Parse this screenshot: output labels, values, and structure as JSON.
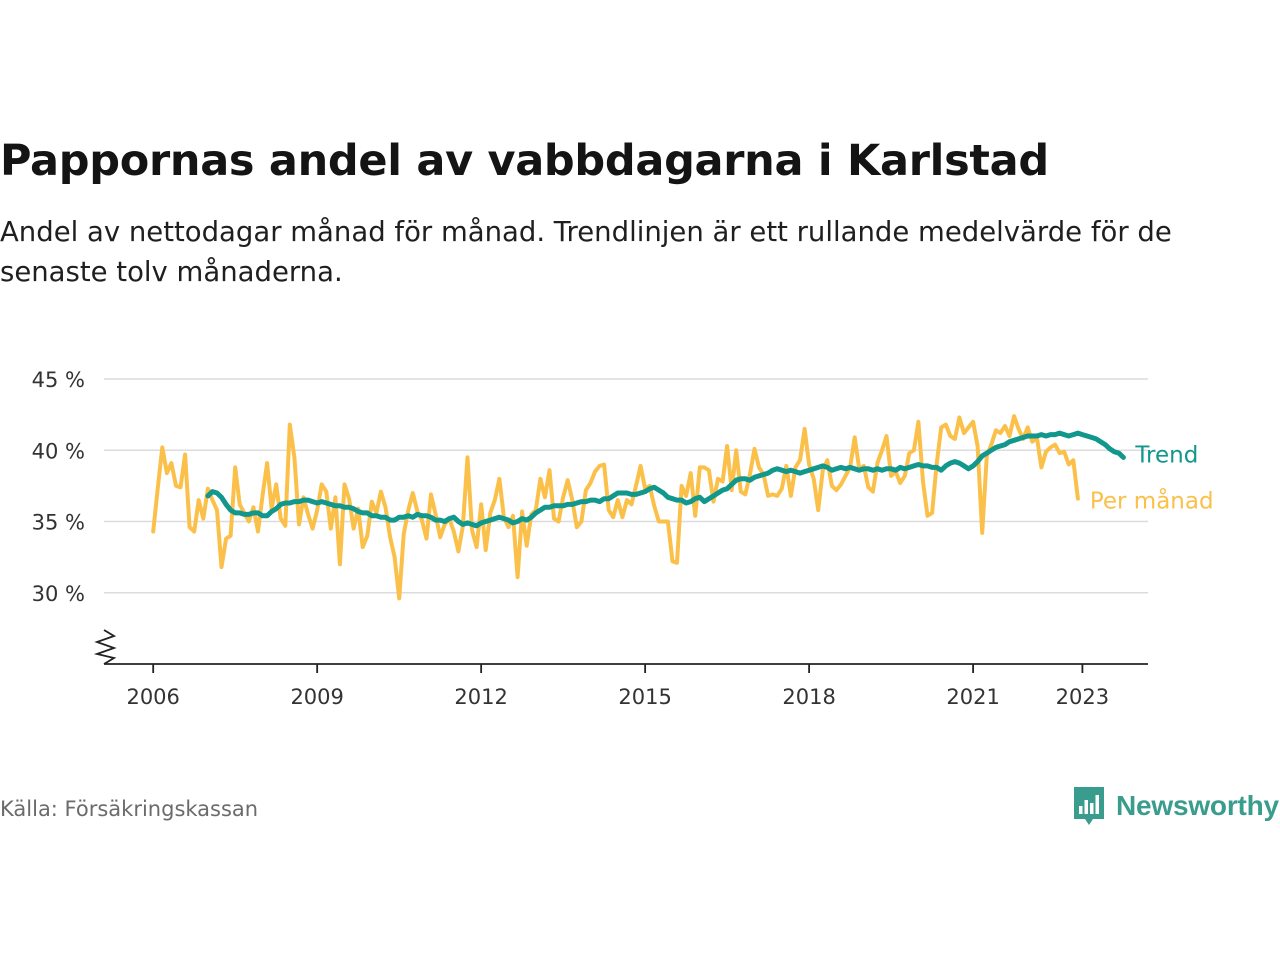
{
  "title": "Pappornas andel av vabbdagarna i Karlstad",
  "subtitle": "Andel av nettodagar månad för månad. Trendlinjen är ett rullande medelvärde för de senaste tolv månaderna.",
  "source": "Källa: Försäkringskassan",
  "brand": {
    "name": "Newsworthy",
    "color": "#3a9c8c",
    "icon": "newsworthy-logo-icon"
  },
  "chart_data": {
    "type": "line",
    "title": "Pappornas andel av vabbdagarna i Karlstad",
    "xlabel": "",
    "ylabel": "",
    "x_start": "2006-01",
    "x_ticks": [
      {
        "label": "2006",
        "value": 2006
      },
      {
        "label": "2009",
        "value": 2009
      },
      {
        "label": "2012",
        "value": 2012
      },
      {
        "label": "2015",
        "value": 2015
      },
      {
        "label": "2018",
        "value": 2018
      },
      {
        "label": "2021",
        "value": 2021
      },
      {
        "label": "2023",
        "value": 2023
      }
    ],
    "y_ticks": [
      {
        "label": "30 %",
        "value": 30
      },
      {
        "label": "35 %",
        "value": 35
      },
      {
        "label": "40 %",
        "value": 40
      },
      {
        "label": "45 %",
        "value": 45
      }
    ],
    "ylim": [
      25,
      45
    ],
    "xlim": [
      2005.1,
      2024.2
    ],
    "grid": true,
    "y_axis_break": true,
    "legend": "inline-right",
    "series": [
      {
        "name": "Per månad",
        "color": "#fbc04a",
        "values": [
          34.3,
          37.3,
          40.2,
          38.4,
          39.1,
          37.5,
          37.4,
          39.7,
          34.6,
          34.3,
          36.5,
          35.2,
          37.3,
          36.5,
          35.8,
          31.8,
          33.8,
          34.0,
          38.8,
          36.2,
          35.6,
          35.0,
          36.0,
          34.3,
          36.8,
          39.1,
          35.9,
          37.6,
          35.2,
          34.7,
          41.8,
          39.5,
          34.8,
          36.7,
          35.5,
          34.5,
          35.8,
          37.6,
          37.1,
          34.5,
          36.7,
          32.0,
          37.6,
          36.6,
          34.5,
          35.9,
          33.2,
          34.0,
          36.4,
          35.6,
          37.1,
          36.0,
          33.9,
          32.5,
          29.6,
          34.1,
          35.8,
          37.0,
          35.7,
          35.1,
          33.8,
          36.9,
          35.5,
          33.9,
          34.8,
          35.2,
          34.3,
          32.9,
          34.7,
          39.5,
          34.4,
          33.2,
          36.2,
          33.0,
          35.6,
          36.5,
          38.0,
          35.3,
          34.6,
          35.4,
          31.1,
          35.7,
          33.3,
          35.5,
          35.8,
          38.0,
          36.7,
          38.6,
          35.2,
          35.0,
          36.7,
          37.9,
          36.5,
          34.6,
          35.0,
          37.2,
          37.7,
          38.5,
          38.9,
          39.0,
          35.8,
          35.3,
          36.5,
          35.3,
          36.5,
          36.2,
          37.5,
          38.9,
          37.3,
          37.5,
          36.1,
          35.0,
          35.0,
          35.0,
          32.2,
          32.1,
          37.5,
          36.8,
          38.4,
          35.4,
          38.8,
          38.8,
          38.6,
          36.4,
          38.0,
          37.8,
          40.3,
          37.2,
          40.0,
          37.1,
          36.9,
          38.3,
          40.1,
          38.8,
          38.3,
          36.8,
          36.9,
          36.8,
          37.3,
          38.9,
          36.8,
          38.8,
          39.3,
          41.5,
          39.0,
          38.0,
          35.8,
          38.6,
          39.3,
          37.5,
          37.2,
          37.6,
          38.2,
          38.8,
          40.9,
          38.7,
          38.9,
          37.4,
          37.1,
          39.1,
          40.0,
          41.0,
          38.2,
          38.5,
          37.7,
          38.2,
          39.8,
          40.0,
          42.0,
          37.8,
          35.4,
          35.6,
          39.0,
          41.6,
          41.8,
          41.0,
          40.8,
          42.3,
          41.2,
          41.6,
          42.0,
          40.3,
          34.2,
          39.6,
          40.4,
          41.4,
          41.2,
          41.7,
          41.0,
          42.4,
          41.5,
          40.8,
          41.6,
          40.6,
          40.9,
          38.8,
          39.9,
          40.2,
          40.4,
          39.8,
          39.9,
          39.0,
          39.3,
          36.6
        ]
      },
      {
        "name": "Trend",
        "color": "#11978b",
        "start_index": 12,
        "values": [
          36.8,
          37.1,
          37.0,
          36.7,
          36.2,
          35.8,
          35.6,
          35.6,
          35.5,
          35.5,
          35.6,
          35.6,
          35.4,
          35.4,
          35.7,
          35.9,
          36.2,
          36.3,
          36.3,
          36.4,
          36.4,
          36.5,
          36.5,
          36.4,
          36.3,
          36.4,
          36.3,
          36.2,
          36.1,
          36.1,
          36.0,
          36.0,
          35.9,
          35.7,
          35.6,
          35.6,
          35.4,
          35.4,
          35.3,
          35.3,
          35.1,
          35.1,
          35.3,
          35.3,
          35.4,
          35.3,
          35.5,
          35.4,
          35.4,
          35.3,
          35.1,
          35.1,
          35.0,
          35.2,
          35.3,
          35.0,
          34.8,
          34.9,
          34.8,
          34.7,
          34.9,
          35.0,
          35.1,
          35.2,
          35.3,
          35.2,
          35.1,
          34.9,
          35.0,
          35.2,
          35.1,
          35.3,
          35.6,
          35.8,
          36.0,
          36.0,
          36.1,
          36.1,
          36.1,
          36.2,
          36.2,
          36.3,
          36.4,
          36.4,
          36.5,
          36.5,
          36.4,
          36.6,
          36.6,
          36.8,
          37.0,
          37.0,
          37.0,
          36.9,
          36.9,
          37.0,
          37.1,
          37.3,
          37.4,
          37.2,
          37.0,
          36.7,
          36.6,
          36.5,
          36.5,
          36.3,
          36.4,
          36.6,
          36.7,
          36.4,
          36.6,
          36.8,
          37.0,
          37.2,
          37.3,
          37.6,
          37.9,
          38.0,
          38.0,
          37.9,
          38.1,
          38.2,
          38.3,
          38.4,
          38.6,
          38.7,
          38.6,
          38.5,
          38.6,
          38.5,
          38.4,
          38.5,
          38.6,
          38.7,
          38.8,
          38.9,
          38.8,
          38.6,
          38.7,
          38.8,
          38.7,
          38.8,
          38.7,
          38.6,
          38.7,
          38.7,
          38.6,
          38.7,
          38.6,
          38.7,
          38.7,
          38.6,
          38.8,
          38.7,
          38.8,
          38.9,
          39.0,
          38.9,
          38.9,
          38.8,
          38.8,
          38.6,
          38.9,
          39.1,
          39.2,
          39.1,
          38.9,
          38.7,
          38.9,
          39.2,
          39.6,
          39.8,
          40.0,
          40.2,
          40.3,
          40.4,
          40.6,
          40.7,
          40.8,
          40.9,
          41.0,
          41.0,
          41.0,
          41.1,
          41.0,
          41.1,
          41.1,
          41.2,
          41.1,
          41.0,
          41.1,
          41.2,
          41.1,
          41.0,
          40.9,
          40.8,
          40.6,
          40.4,
          40.1,
          39.9,
          39.8,
          39.5
        ]
      }
    ]
  }
}
